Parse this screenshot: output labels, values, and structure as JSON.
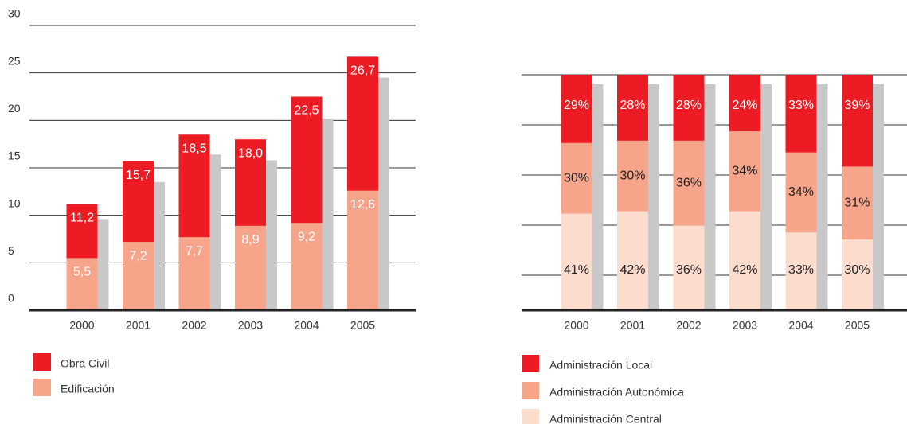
{
  "chart_data": [
    {
      "type": "bar",
      "categories": [
        "2000",
        "2001",
        "2002",
        "2003",
        "2004",
        "2005"
      ],
      "series": [
        {
          "name": "Obra Civil",
          "color": "#ed1c24",
          "values": [
            11.2,
            15.7,
            18.5,
            18.0,
            22.5,
            26.7
          ],
          "value_labels": [
            "11,2",
            "15,7",
            "18,5",
            "18,0",
            "22,5",
            "26,7"
          ]
        },
        {
          "name": "Edificación",
          "color": "#f7a58a",
          "values": [
            5.5,
            7.2,
            7.7,
            8.9,
            9.2,
            12.6
          ],
          "value_labels": [
            "5,5",
            "7,2",
            "7,7",
            "8,9",
            "9,2",
            "12,6"
          ]
        }
      ],
      "shadow": {
        "color": "#c8c8c8",
        "values": [
          9.6,
          13.5,
          16.4,
          15.8,
          20.2,
          24.5
        ]
      },
      "ylim": [
        0,
        30
      ],
      "yticks": [
        0,
        5,
        10,
        15,
        20,
        25,
        30
      ],
      "grid": true
    },
    {
      "type": "stacked_bar",
      "categories": [
        "2000",
        "2001",
        "2002",
        "2003",
        "2004",
        "2005"
      ],
      "series": [
        {
          "name": "Administración Local",
          "color": "#ed1c24",
          "values": [
            29,
            28,
            28,
            24,
            33,
            39
          ],
          "value_labels": [
            "29%",
            "28%",
            "28%",
            "24%",
            "33%",
            "39%"
          ]
        },
        {
          "name": "Administración Autonómica",
          "color": "#f7a58a",
          "values": [
            30,
            30,
            36,
            34,
            34,
            31
          ],
          "value_labels": [
            "30%",
            "30%",
            "36%",
            "34%",
            "34%",
            "31%"
          ]
        },
        {
          "name": "Administración Central",
          "color": "#fcdccc",
          "values": [
            41,
            42,
            36,
            42,
            33,
            30
          ],
          "value_labels": [
            "41%",
            "42%",
            "36%",
            "42%",
            "33%",
            "30%"
          ]
        }
      ],
      "shadow": {
        "color": "#c8c8c8",
        "values": [
          96,
          96,
          96,
          96,
          96,
          96
        ]
      },
      "ylim": [
        0,
        100
      ]
    }
  ]
}
